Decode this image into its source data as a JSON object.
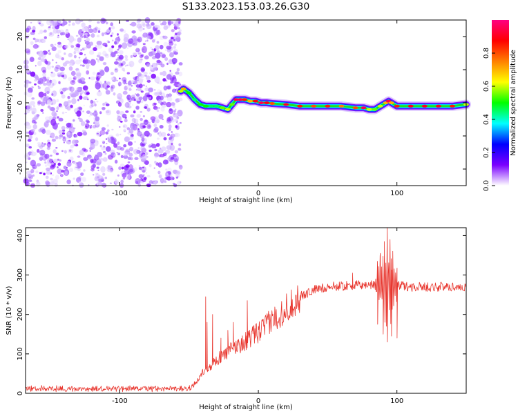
{
  "figure_title": "S133.2023.153.03.26.G30",
  "chart_data": [
    {
      "type": "heatmap",
      "xlabel": "Height of straight line (km)",
      "ylabel": "Frequency (Hz)",
      "xlim": [
        -168,
        150
      ],
      "ylim": [
        -25,
        25
      ],
      "x_ticks": [
        -100,
        0,
        100
      ],
      "y_ticks": [
        -20,
        -10,
        0,
        10,
        20
      ],
      "colorbar": {
        "label": "Normalized spectral amplitude",
        "range": [
          0,
          1
        ],
        "ticks": [
          0.0,
          0.2,
          0.4,
          0.6,
          0.8
        ],
        "tick_labels": [
          "0.0",
          "0.2",
          "0.4",
          "0.6",
          "0.8"
        ],
        "colormap": [
          "#ffffff",
          "#7a00ff",
          "#0000ff",
          "#00ffff",
          "#00ff00",
          "#ffff00",
          "#ff8000",
          "#ff0000",
          "#ff0080"
        ]
      },
      "noise_region_x": [
        -168,
        -56
      ],
      "noise_description": "scattered low-amplitude speckle across all frequencies",
      "ridge": {
        "x": [
          -56,
          -54,
          -50,
          -46,
          -42,
          -38,
          -34,
          -30,
          -26,
          -22,
          -19,
          -16,
          -13,
          -10,
          -6,
          -2,
          2,
          6,
          10,
          20,
          30,
          40,
          50,
          60,
          70,
          76,
          80,
          84,
          88,
          92,
          94,
          96,
          100,
          110,
          120,
          130,
          140,
          150
        ],
        "frequency_hz": [
          3.5,
          4.2,
          3.0,
          1.0,
          -0.5,
          -1.0,
          -1.0,
          -1.0,
          -1.5,
          -2.0,
          -0.5,
          1.0,
          1.0,
          1.0,
          0.5,
          0.5,
          0.0,
          0.0,
          -0.2,
          -0.5,
          -1.0,
          -1.0,
          -1.0,
          -1.0,
          -1.5,
          -1.5,
          -2.0,
          -2.0,
          -1.0,
          0.0,
          0.5,
          0.0,
          -1.0,
          -1.0,
          -1.0,
          -1.0,
          -1.0,
          -0.5
        ],
        "peak_amplitude": [
          0.6,
          0.7,
          0.5,
          0.45,
          0.5,
          0.5,
          0.45,
          0.45,
          0.55,
          0.6,
          0.55,
          0.95,
          0.95,
          0.85,
          0.7,
          0.9,
          0.95,
          0.9,
          0.8,
          0.9,
          0.85,
          0.8,
          0.85,
          0.75,
          0.8,
          0.95,
          0.6,
          0.55,
          0.6,
          0.7,
          0.95,
          0.7,
          0.85,
          0.9,
          0.9,
          0.9,
          0.85,
          0.6
        ]
      }
    },
    {
      "type": "line",
      "xlabel": "Height of straight line (km)",
      "ylabel": "SNR (10 * v/v)",
      "xlim": [
        -168,
        150
      ],
      "ylim": [
        0,
        420
      ],
      "x_ticks": [
        -100,
        0,
        100
      ],
      "y_ticks": [
        0,
        100,
        200,
        300,
        400
      ],
      "color": "#e8352d",
      "envelope": {
        "x": [
          -168,
          -50,
          -45,
          -40,
          -30,
          -20,
          -10,
          0,
          10,
          20,
          30,
          40,
          50,
          60,
          70,
          80,
          85,
          90,
          95,
          100,
          105,
          110,
          120,
          130,
          140,
          150
        ],
        "snr": [
          12,
          12,
          25,
          55,
          85,
          110,
          130,
          155,
          185,
          215,
          245,
          262,
          270,
          272,
          274,
          275,
          275,
          275,
          275,
          275,
          272,
          270,
          270,
          270,
          270,
          270
        ]
      },
      "spikes": [
        {
          "x": -38,
          "snr": 245
        },
        {
          "x": -37,
          "snr": 180
        },
        {
          "x": -33,
          "snr": 200
        },
        {
          "x": -27,
          "snr": 140
        },
        {
          "x": -22,
          "snr": 160
        },
        {
          "x": -18,
          "snr": 180
        },
        {
          "x": -15,
          "snr": 135
        },
        {
          "x": -8,
          "snr": 235
        },
        {
          "x": 68,
          "snr": 305
        },
        {
          "x": 86,
          "snr": 335
        },
        {
          "x": 88,
          "snr": 355
        },
        {
          "x": 91,
          "snr": 385
        },
        {
          "x": 93,
          "snr": 420
        },
        {
          "x": 95,
          "snr": 390
        },
        {
          "x": 97,
          "snr": 360
        },
        {
          "x": 100,
          "snr": 310
        }
      ],
      "dips": [
        {
          "x": 86,
          "snr": 175
        },
        {
          "x": 90,
          "snr": 150
        },
        {
          "x": 93,
          "snr": 130
        },
        {
          "x": 96,
          "snr": 145
        },
        {
          "x": 100,
          "snr": 140
        }
      ]
    }
  ]
}
